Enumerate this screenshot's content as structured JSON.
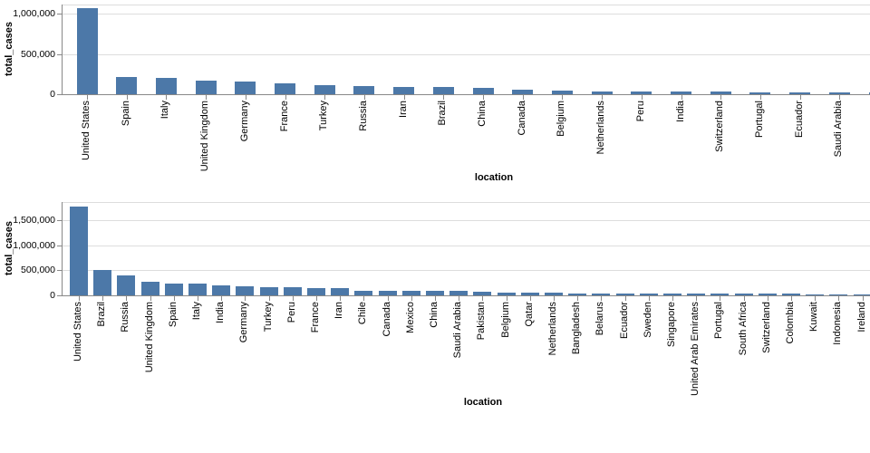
{
  "page": {
    "background": "#ffffff",
    "bar_color": "#4c78a8",
    "gridline_color": "#dddddd",
    "axis_color": "#888888",
    "label_color": "#000000"
  },
  "chart_data": [
    {
      "type": "bar",
      "title": "",
      "xlabel": "location",
      "ylabel": "total_cases",
      "legend": false,
      "grid": true,
      "ylim": [
        0,
        1118000
      ],
      "yticks": [
        {
          "value": 0,
          "label": "0"
        },
        {
          "value": 500000,
          "label": "500,000"
        },
        {
          "value": 1000000,
          "label": "1,000,000"
        }
      ],
      "categories": [
        "United States",
        "Spain",
        "Italy",
        "United Kingdom",
        "Germany",
        "France",
        "Turkey",
        "Russia",
        "Iran",
        "Brazil",
        "China",
        "Canada",
        "Belgium",
        "Netherlands",
        "Peru",
        "India",
        "Switzerland",
        "Portugal",
        "Ecuador",
        "Saudi Arabia"
      ],
      "values": [
        1070000,
        213000,
        204000,
        172000,
        162000,
        130000,
        118000,
        100000,
        94000,
        87000,
        84000,
        53000,
        48000,
        39000,
        37000,
        35000,
        30000,
        25000,
        24900,
        22800
      ],
      "overflow_bar_value": 20000
    },
    {
      "type": "bar",
      "title": "",
      "xlabel": "location",
      "ylabel": "total_cases",
      "legend": false,
      "grid": true,
      "ylim": [
        0,
        1859000
      ],
      "yticks": [
        {
          "value": 0,
          "label": "0"
        },
        {
          "value": 500000,
          "label": "500,000"
        },
        {
          "value": 1000000,
          "label": "1,000,000"
        },
        {
          "value": 1500000,
          "label": "1,500,000"
        }
      ],
      "categories": [
        "United States",
        "Brazil",
        "Russia",
        "United Kingdom",
        "Spain",
        "Italy",
        "India",
        "Germany",
        "Turkey",
        "Peru",
        "France",
        "Iran",
        "Chile",
        "Canada",
        "Mexico",
        "China",
        "Saudi Arabia",
        "Pakistan",
        "Belgium",
        "Qatar",
        "Netherlands",
        "Bangladesh",
        "Belarus",
        "Ecuador",
        "Sweden",
        "Singapore",
        "United Arab Emirates",
        "Portugal",
        "South Africa",
        "Switzerland",
        "Colombia",
        "Kuwait",
        "Indonesia",
        "Ireland"
      ],
      "values": [
        1770000,
        499000,
        397000,
        272000,
        239000,
        232000,
        190000,
        183000,
        163000,
        155000,
        152000,
        148000,
        99000,
        90000,
        87000,
        84000,
        83000,
        69000,
        58000,
        56000,
        46000,
        44000,
        42000,
        39000,
        37000,
        34000,
        33000,
        32000,
        31000,
        30900,
        29000,
        27000,
        26000,
        25000
      ],
      "overflow_bar_value": null
    }
  ]
}
